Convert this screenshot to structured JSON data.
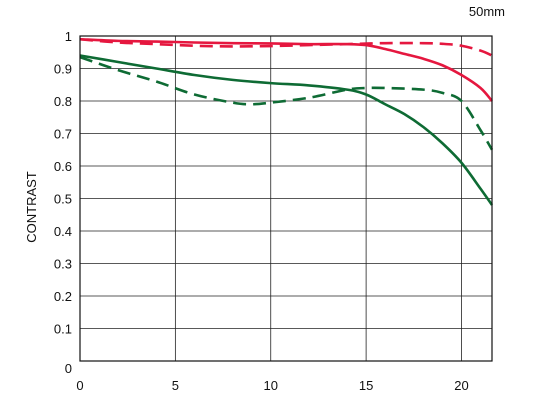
{
  "chart_data": {
    "type": "line",
    "title": "",
    "annotation": "50mm",
    "xlabel": "",
    "ylabel": "CONTRAST",
    "xlim": [
      0,
      21.6
    ],
    "ylim": [
      0,
      1
    ],
    "xticks": [
      "0",
      "5",
      "10",
      "15",
      "20"
    ],
    "yticks": [
      "0",
      "0.1",
      "0.2",
      "0.3",
      "0.4",
      "0.5",
      "0.6",
      "0.7",
      "0.8",
      "0.9",
      "1"
    ],
    "grid": true,
    "legend": "none",
    "series": [
      {
        "color": "#e5173f",
        "dash": "solid",
        "x": [
          0,
          2,
          4,
          6,
          8,
          10,
          12,
          14,
          15,
          16,
          17,
          18,
          19,
          20,
          21,
          21.6
        ],
        "y": [
          0.99,
          0.985,
          0.983,
          0.98,
          0.978,
          0.977,
          0.975,
          0.975,
          0.972,
          0.96,
          0.945,
          0.93,
          0.91,
          0.88,
          0.84,
          0.8
        ]
      },
      {
        "color": "#e5173f",
        "dash": "dashed",
        "x": [
          0,
          2,
          4,
          6,
          8,
          10,
          12,
          14,
          16,
          18,
          19,
          20,
          21,
          21.6
        ],
        "y": [
          0.99,
          0.98,
          0.975,
          0.97,
          0.968,
          0.969,
          0.972,
          0.975,
          0.978,
          0.978,
          0.976,
          0.97,
          0.955,
          0.94
        ]
      },
      {
        "color": "#0e6b34",
        "dash": "solid",
        "x": [
          0,
          2,
          4,
          6,
          8,
          10,
          12,
          14,
          15,
          16,
          17,
          18,
          19,
          20,
          21,
          21.6
        ],
        "y": [
          0.94,
          0.92,
          0.9,
          0.88,
          0.865,
          0.855,
          0.848,
          0.835,
          0.82,
          0.79,
          0.76,
          0.72,
          0.67,
          0.61,
          0.53,
          0.48
        ]
      },
      {
        "color": "#0e6b34",
        "dash": "dashed",
        "x": [
          0,
          2,
          4,
          6,
          8,
          9,
          10,
          12,
          14,
          15,
          16,
          18,
          19,
          20,
          21,
          21.6
        ],
        "y": [
          0.935,
          0.895,
          0.86,
          0.82,
          0.795,
          0.79,
          0.795,
          0.81,
          0.835,
          0.84,
          0.84,
          0.835,
          0.825,
          0.8,
          0.71,
          0.65
        ]
      }
    ]
  }
}
